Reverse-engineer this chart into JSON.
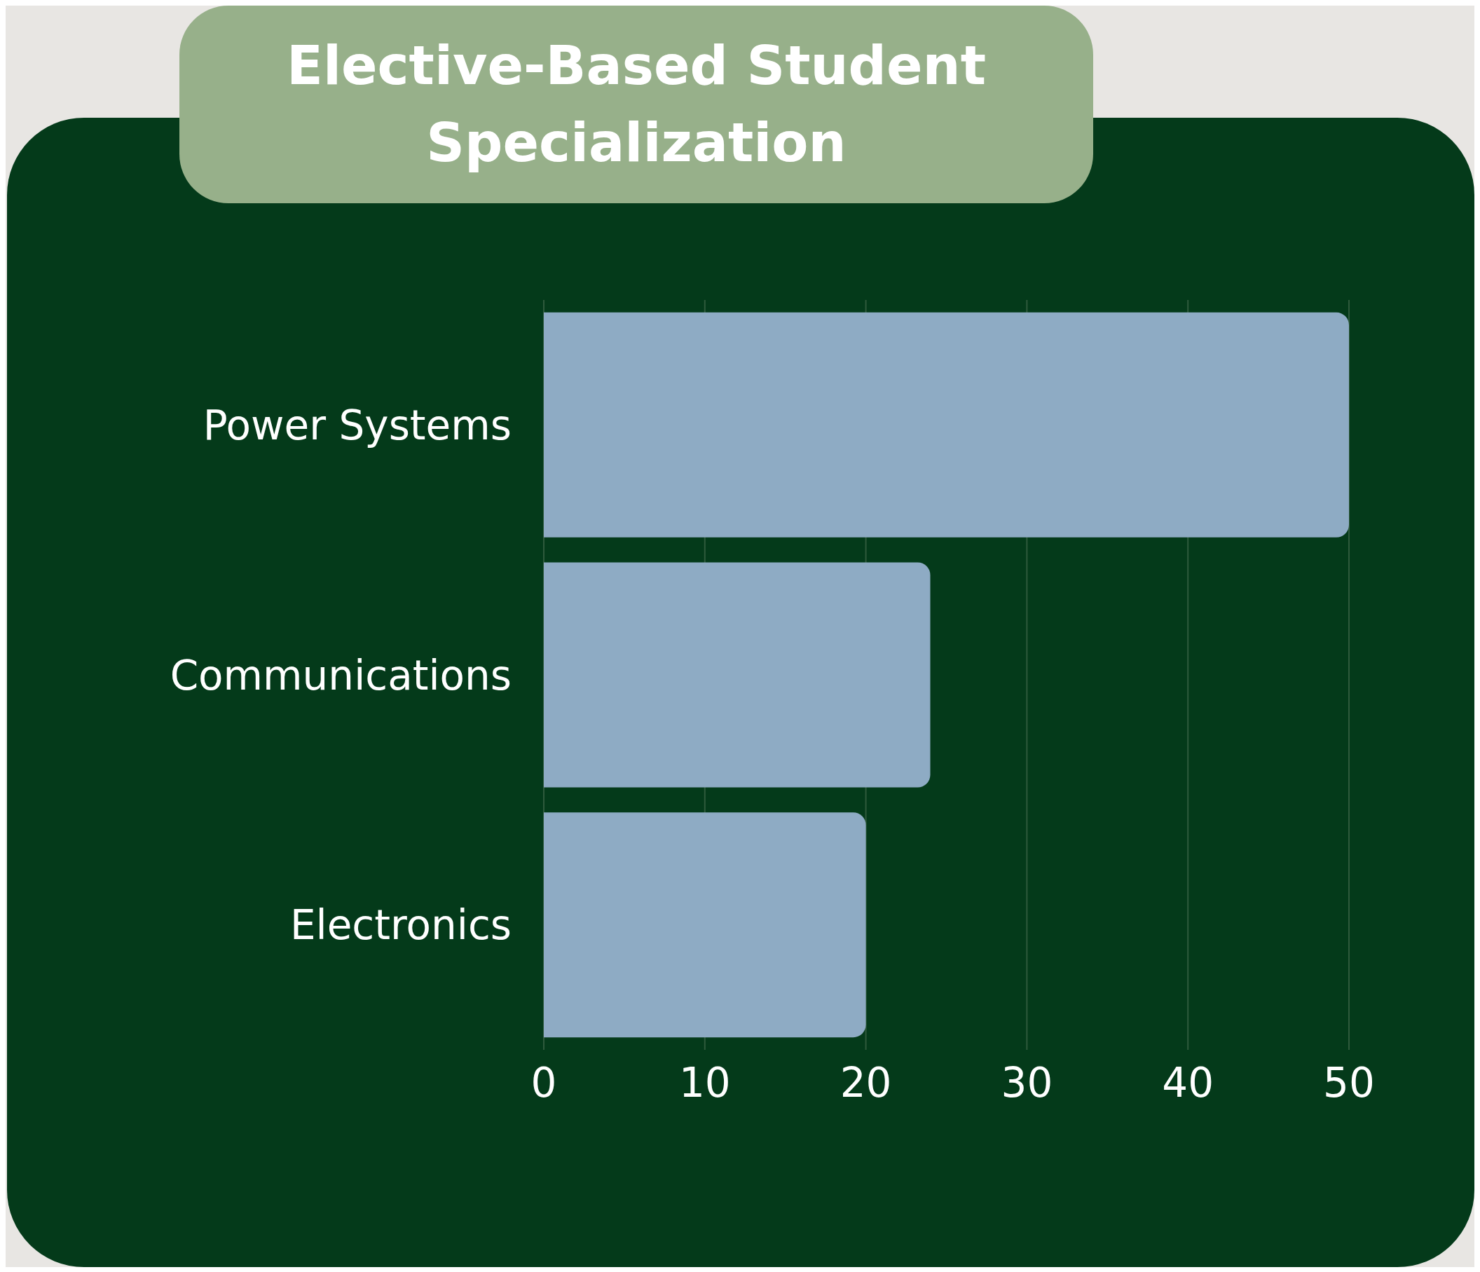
{
  "chart_data": {
    "type": "bar",
    "orientation": "horizontal",
    "title": "Elective-Based Student Specialization",
    "categories": [
      "Power Systems",
      "Communications",
      "Electronics"
    ],
    "values": [
      50,
      24,
      20
    ],
    "color": "#8eabc4",
    "xlim": [
      0,
      50
    ],
    "xticks": [
      0,
      10,
      20,
      30,
      40,
      50
    ],
    "grid": "x"
  }
}
